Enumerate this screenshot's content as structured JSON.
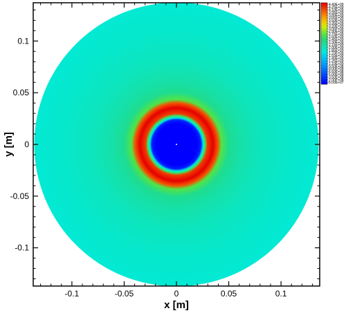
{
  "chart_data": {
    "type": "heatmap",
    "title": "",
    "xlabel": "x [m]",
    "ylabel": "y [m]",
    "xlim": [
      -0.137,
      0.137
    ],
    "ylim": [
      -0.137,
      0.137
    ],
    "x_ticks": [
      -0.1,
      -0.05,
      0,
      0.05,
      0.1
    ],
    "y_ticks": [
      -0.1,
      -0.05,
      0,
      0.05,
      0.1
    ],
    "x_tick_labels": [
      "-0.1",
      "-0.05",
      "0",
      "0.05",
      "0.1"
    ],
    "y_tick_labels": [
      "-0.1",
      "-0.05",
      "0",
      "0.05",
      "0.1"
    ],
    "domain_radius": 0.136,
    "radial_profile": [
      {
        "r": 0.0,
        "value": 60000000.0
      },
      {
        "r": 0.02,
        "value": 60000000.0
      },
      {
        "r": 0.0235,
        "value": 300000000.0
      },
      {
        "r": 0.0255,
        "value": 1800000000.0
      },
      {
        "r": 0.0275,
        "value": 2600000000.0
      },
      {
        "r": 0.0295,
        "value": 4100000000.0
      },
      {
        "r": 0.035,
        "value": 4400000000.0
      },
      {
        "r": 0.0395,
        "value": 4000000000.0
      },
      {
        "r": 0.043,
        "value": 2700000000.0
      },
      {
        "r": 0.05,
        "value": 2300000000.0
      },
      {
        "r": 0.06,
        "value": 2150000000.0
      },
      {
        "r": 0.08,
        "value": 2000000000.0
      },
      {
        "r": 0.11,
        "value": 1900000000.0
      },
      {
        "r": 0.136,
        "value": 1850000000.0
      }
    ],
    "legend": {
      "position": "right",
      "min": 60000000.0,
      "max": 4400000000.0,
      "labels": [
        "4.40E+09",
        "4.25E+09",
        "4.10E+09",
        "3.95E+09",
        "3.80E+09",
        "3.65E+09",
        "3.50E+09",
        "3.35E+09",
        "3.20E+09",
        "3.05E+09",
        "2.90E+09",
        "2.75E+09",
        "2.60E+09",
        "2.45E+09",
        "2.30E+09",
        "2.15E+09",
        "2.00E+09",
        "1.85E+09",
        "1.70E+09",
        "1.55E+09",
        "1.40E+09",
        "1.25E+09",
        "1.10E+09",
        "9.50E+08",
        "8.00E+08",
        "6.50E+08",
        "5.00E+08",
        "3.50E+08",
        "2.00E+08",
        "6.00E+07"
      ]
    },
    "grid": false
  }
}
